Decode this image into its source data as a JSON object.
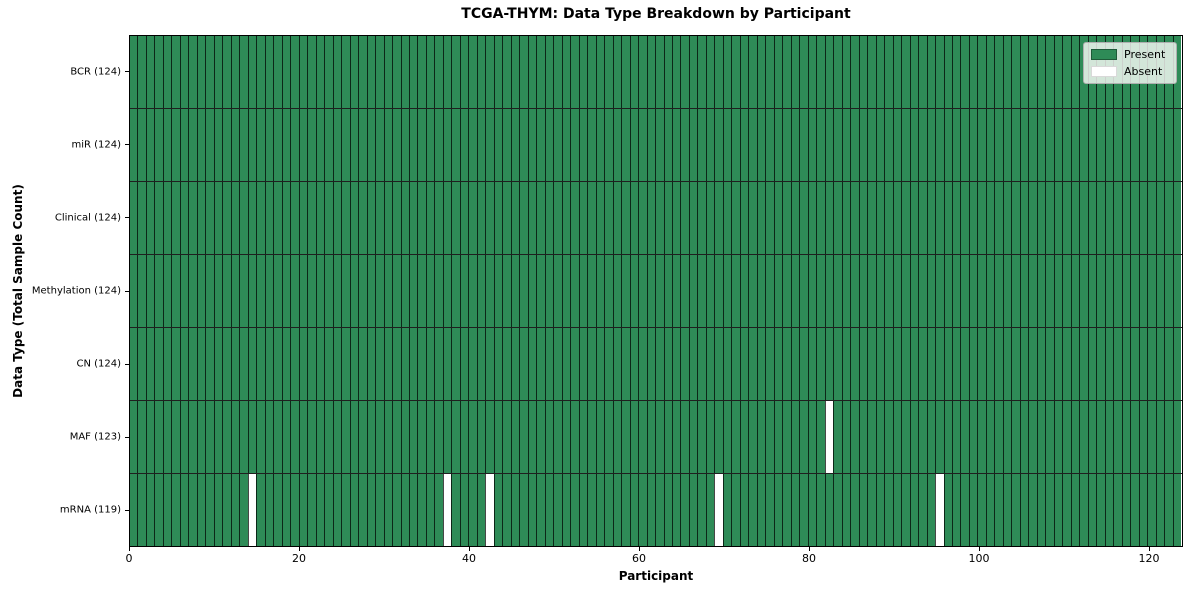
{
  "chart_data": {
    "type": "heatmap",
    "title": "TCGA-THYM: Data Type Breakdown by Participant",
    "xlabel": "Participant",
    "ylabel": "Data Type (Total Sample Count)",
    "n_participants": 124,
    "xlim": [
      0,
      124
    ],
    "x_ticks": [
      0,
      20,
      40,
      60,
      80,
      100,
      120
    ],
    "grid": "off",
    "rows": [
      {
        "name": "BCR",
        "count": 124,
        "label": "BCR (124)",
        "absent_participants": []
      },
      {
        "name": "miR",
        "count": 124,
        "label": "miR (124)",
        "absent_participants": []
      },
      {
        "name": "Clinical",
        "count": 124,
        "label": "Clinical (124)",
        "absent_participants": []
      },
      {
        "name": "Methylation",
        "count": 124,
        "label": "Methylation (124)",
        "absent_participants": []
      },
      {
        "name": "CN",
        "count": 124,
        "label": "CN (124)",
        "absent_participants": []
      },
      {
        "name": "MAF",
        "count": 123,
        "label": "MAF (123)",
        "absent_participants": [
          82
        ]
      },
      {
        "name": "mRNA",
        "count": 119,
        "label": "mRNA (119)",
        "absent_participants": [
          14,
          37,
          42,
          69,
          95
        ]
      }
    ],
    "legend": {
      "position": "upper right",
      "entries": [
        {
          "label": "Present",
          "color": "#2e8b57"
        },
        {
          "label": "Absent",
          "color": "#ffffff"
        }
      ]
    },
    "colors": {
      "present": "#2e8b57",
      "absent": "#ffffff",
      "cell_edge": "rgba(0,0,0,0.72)",
      "row_divider": "rgba(0,0,0,0.88)",
      "axes_edge": "#000000"
    }
  }
}
